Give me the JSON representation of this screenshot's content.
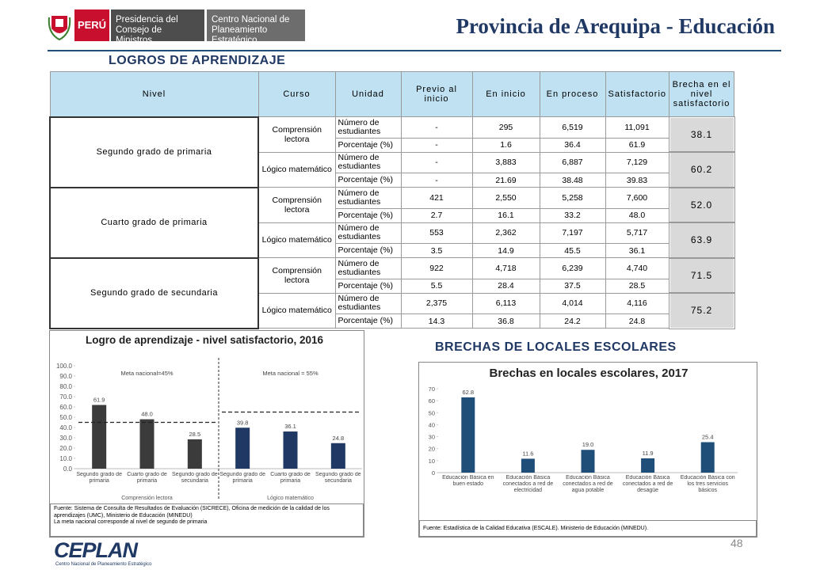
{
  "header": {
    "country": "PERÚ",
    "institution_1": "Presidencia del Consejo de Ministros",
    "institution_2": "Centro Nacional de Planeamiento Estratégico",
    "title": "Provincia de Arequipa - Educación"
  },
  "section_1": "LOGROS DE APRENDIZAJE",
  "table": {
    "header": [
      "Nivel",
      "Curso",
      "Unidad",
      "Previo al inicio",
      "En inicio",
      "En proceso",
      "Satisfactorio",
      "Brecha en el nivel satisfactorio"
    ],
    "groups": [
      {
        "nivel": "Segundo grado de primaria",
        "cursos": [
          {
            "curso": "Comprensión lectora",
            "rows": [
              {
                "unidad": "Número de estudiantes",
                "values": [
                  "-",
                  "295",
                  "6,519",
                  "11,091"
                ]
              },
              {
                "unidad": "Porcentaje (%)",
                "values": [
                  "-",
                  "1.6",
                  "36.4",
                  "61.9"
                ]
              }
            ],
            "brecha": "38.1"
          },
          {
            "curso": "Lógico matemático",
            "rows": [
              {
                "unidad": "Número de estudiantes",
                "values": [
                  "-",
                  "3,883",
                  "6,887",
                  "7,129"
                ]
              },
              {
                "unidad": "Porcentaje (%)",
                "values": [
                  "-",
                  "21.69",
                  "38.48",
                  "39.83"
                ]
              }
            ],
            "brecha": "60.2"
          }
        ]
      },
      {
        "nivel": "Cuarto grado de primaria",
        "cursos": [
          {
            "curso": "Comprensión lectora",
            "rows": [
              {
                "unidad": "Número de estudiantes",
                "values": [
                  "421",
                  "2,550",
                  "5,258",
                  "7,600"
                ]
              },
              {
                "unidad": "Porcentaje (%)",
                "values": [
                  "2.7",
                  "16.1",
                  "33.2",
                  "48.0"
                ]
              }
            ],
            "brecha": "52.0"
          },
          {
            "curso": "Lógico matemático",
            "rows": [
              {
                "unidad": "Número de estudiantes",
                "values": [
                  "553",
                  "2,362",
                  "7,197",
                  "5,717"
                ]
              },
              {
                "unidad": "Porcentaje (%)",
                "values": [
                  "3.5",
                  "14.9",
                  "45.5",
                  "36.1"
                ]
              }
            ],
            "brecha": "63.9"
          }
        ]
      },
      {
        "nivel": "Segundo grado de secundaria",
        "cursos": [
          {
            "curso": "Comprensión lectora",
            "rows": [
              {
                "unidad": "Número de estudiantes",
                "values": [
                  "922",
                  "4,718",
                  "6,239",
                  "4,740"
                ]
              },
              {
                "unidad": "Porcentaje (%)",
                "values": [
                  "5.5",
                  "28.4",
                  "37.5",
                  "28.5"
                ]
              }
            ],
            "brecha": "71.5"
          },
          {
            "curso": "Lógico matemático",
            "rows": [
              {
                "unidad": "Número de estudiantes",
                "values": [
                  "2,375",
                  "6,113",
                  "4,014",
                  "4,116"
                ]
              },
              {
                "unidad": "Porcentaje (%)",
                "values": [
                  "14.3",
                  "36.8",
                  "24.2",
                  "24.8"
                ]
              }
            ],
            "brecha": "75.2"
          }
        ]
      }
    ]
  },
  "section_2": "BRECHAS DE LOCALES ESCOLARES",
  "chart_data": [
    {
      "type": "bar",
      "title": "Logro de aprendizaje - nivel satisfactorio, 2016",
      "categories": [
        "Segundo grado de primaria",
        "Cuarto grado de primaria",
        "Segundo grado de secundaria",
        "Segundo grado de primaria",
        "Cuarto grado de primaria",
        "Segundo grado de secundaria"
      ],
      "values": [
        61.9,
        48,
        28.5,
        39.8,
        36.1,
        24.8
      ],
      "value_labels": [
        "61.9",
        "48.0",
        "28.5",
        "39.8",
        "36.1",
        "24.8"
      ],
      "colors": [
        "#3b3b3b",
        "#3b3b3b",
        "#3b3b3b",
        "#1f3864",
        "#1f3864",
        "#1f3864"
      ],
      "groups": [
        "Comprensión lectora",
        "Lógico matemático"
      ],
      "annotations": [
        "Meta nacional=45%",
        "Meta nacional = 55%"
      ],
      "targets": [
        45,
        55
      ],
      "ylim": [
        0,
        100
      ],
      "yticks": [
        {
          "value": 0,
          "label": "0.0"
        },
        {
          "value": 10,
          "label": "10.0"
        },
        {
          "value": 20,
          "label": "20.0"
        },
        {
          "value": 30,
          "label": "30.0"
        },
        {
          "value": 40,
          "label": "40.0"
        },
        {
          "value": 50,
          "label": "50.0"
        },
        {
          "value": 60,
          "label": "60.0"
        },
        {
          "value": 70,
          "label": "70.0"
        },
        {
          "value": 80,
          "label": "80.0"
        },
        {
          "value": 90,
          "label": "90.0"
        },
        {
          "value": 100,
          "label": "100.0"
        }
      ],
      "source": [
        "Fuente: Sistema de Consulta de Resultados de Evaluación (SICRECE), Oficina de medición de la calidad de los aprendizajes (UMC), Ministerio de Educación (MINEDU)",
        "La meta nacional corresponde al nivel de segundo de primaria"
      ]
    },
    {
      "type": "bar",
      "title": "Brechas en locales escolares, 2017",
      "categories": [
        "Educación Básica en buen estado",
        "Educación Básica conectados a red de electricidad",
        "Educación Básica conectados a red de agua potable",
        "Educación Básica conectados a red de desagüe",
        "Educación Básica con los tres servicios básicos"
      ],
      "values": [
        62.8,
        11.6,
        19,
        11.9,
        25.4
      ],
      "value_labels": [
        "62.8",
        "11.6",
        "19.0",
        "11.9",
        "25.4"
      ],
      "color": "#1f4e79",
      "ylim": [
        0,
        70
      ],
      "yticks": [
        0,
        10,
        20,
        30,
        40,
        50,
        60,
        70
      ],
      "source": [
        "Fuente: Estadística de la Calidad Educativa (ESCALE). Ministerio de Educación (MINEDU)."
      ]
    }
  ],
  "footer": {
    "page": "48",
    "logo": "CEPLAN",
    "logo_caption": "Centro Nacional de Planeamiento Estratégico"
  }
}
